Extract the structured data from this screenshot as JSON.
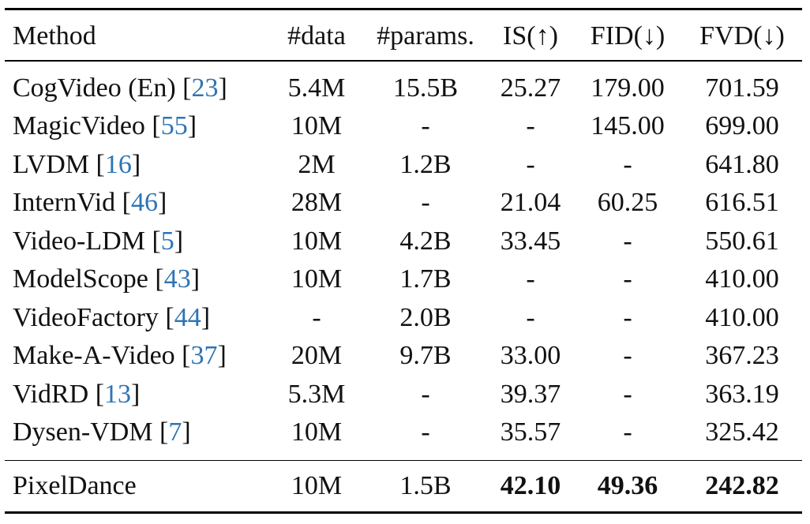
{
  "table": {
    "headers": {
      "method": "Method",
      "data": "#data",
      "params": "#params.",
      "is": "IS(↑)",
      "fid": "FID(↓)",
      "fvd": "FVD(↓)"
    },
    "rows": [
      {
        "method": "CogVideo (En)",
        "ref": "23",
        "data": "5.4M",
        "params": "15.5B",
        "is": "25.27",
        "fid": "179.00",
        "fvd": "701.59"
      },
      {
        "method": "MagicVideo",
        "ref": "55",
        "data": "10M",
        "params": "-",
        "is": "-",
        "fid": "145.00",
        "fvd": "699.00"
      },
      {
        "method": "LVDM",
        "ref": "16",
        "data": "2M",
        "params": "1.2B",
        "is": "-",
        "fid": "-",
        "fvd": "641.80"
      },
      {
        "method": "InternVid",
        "ref": "46",
        "data": "28M",
        "params": "-",
        "is": "21.04",
        "fid": "60.25",
        "fvd": "616.51"
      },
      {
        "method": "Video-LDM",
        "ref": "5",
        "data": "10M",
        "params": "4.2B",
        "is": "33.45",
        "fid": "-",
        "fvd": "550.61"
      },
      {
        "method": "ModelScope",
        "ref": "43",
        "data": "10M",
        "params": "1.7B",
        "is": "-",
        "fid": "-",
        "fvd": "410.00"
      },
      {
        "method": "VideoFactory",
        "ref": "44",
        "data": "-",
        "params": "2.0B",
        "is": "-",
        "fid": "-",
        "fvd": "410.00"
      },
      {
        "method": "Make-A-Video",
        "ref": "37",
        "data": "20M",
        "params": "9.7B",
        "is": "33.00",
        "fid": "-",
        "fvd": "367.23"
      },
      {
        "method": "VidRD",
        "ref": "13",
        "data": "5.3M",
        "params": "-",
        "is": "39.37",
        "fid": "-",
        "fvd": "363.19"
      },
      {
        "method": "Dysen-VDM",
        "ref": "7",
        "data": "10M",
        "params": "-",
        "is": "35.57",
        "fid": "-",
        "fvd": "325.42"
      }
    ],
    "final_row": {
      "method": "PixelDance",
      "data": "10M",
      "params": "1.5B",
      "is": "42.10",
      "fid": "49.36",
      "fvd": "242.82"
    }
  },
  "colors": {
    "citation": "#2e74b5",
    "text": "#111111",
    "rule": "#000000"
  }
}
